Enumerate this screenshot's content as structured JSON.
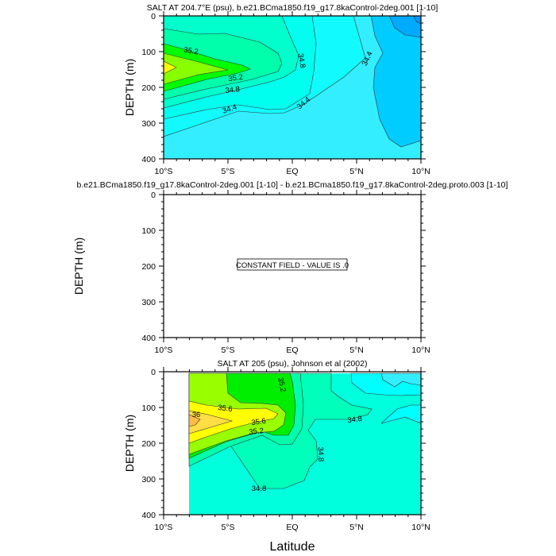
{
  "chart_data": [
    {
      "type": "contour",
      "title": "SALT AT 204.7°E (psu), b.e21.BCma1850.f19_g17.8kaControl-2deg.001 [1-10]",
      "ylabel": "DEPTH (m)",
      "xlabel": "",
      "xlim": [
        -10,
        10
      ],
      "ylim": [
        400,
        0
      ],
      "xticks": [
        -10,
        -5,
        0,
        5,
        10
      ],
      "xtick_labels": [
        "10°S",
        "5°S",
        "EQ",
        "5°N",
        "10°N"
      ],
      "yticks": [
        0,
        100,
        200,
        300,
        400
      ],
      "ytick_labels": [
        "0",
        "100",
        "200",
        "300",
        "400"
      ],
      "contour_labels": [
        "35.2",
        "35.2",
        "34.8",
        "34.4",
        "34.8",
        "34.4",
        "34.4"
      ],
      "colors": [
        "#0099ff",
        "#00aaff",
        "#00ccff",
        "#33eeff",
        "#11fbff",
        "#00ffee",
        "#00ffcc",
        "#00ffaa",
        "#00ff00",
        "#88ff00",
        "#ffff00"
      ]
    },
    {
      "type": "contour",
      "title": "b.e21.BCma1850.f19_g17.8kaControl-2deg.001 [1-10] - b.e21.BCma1850.f19_g17.8kaControl-2deg.proto.003 [1-10]",
      "ylabel": "DEPTH (m)",
      "xlabel": "",
      "xlim": [
        -10,
        10
      ],
      "ylim": [
        400,
        0
      ],
      "xticks": [
        -10,
        -5,
        0,
        5,
        10
      ],
      "xtick_labels": [
        "10°S",
        "5°S",
        "EQ",
        "5°N",
        "10°N"
      ],
      "yticks": [
        0,
        100,
        200,
        300,
        400
      ],
      "ytick_labels": [
        "0",
        "100",
        "200",
        "300",
        "400"
      ],
      "annotation": "CONSTANT FIELD - VALUE IS .0"
    },
    {
      "type": "contour",
      "title": "SALT AT 205 (psu), Johnson et al (2002)",
      "ylabel": "DEPTH (m)",
      "xlabel": "Latitude",
      "xlim": [
        -10,
        10
      ],
      "ylim": [
        400,
        0
      ],
      "xticks": [
        -10,
        -5,
        0,
        5,
        10
      ],
      "xtick_labels": [
        "10°S",
        "5°S",
        "EQ",
        "5°N",
        "10°N"
      ],
      "yticks": [
        0,
        100,
        200,
        300,
        400
      ],
      "ytick_labels": [
        "0",
        "100",
        "200",
        "300",
        "400"
      ],
      "contour_labels": [
        "35.2",
        "35.6",
        "36",
        "35.6",
        "35.2",
        "34.8",
        "34.8",
        "34.8"
      ],
      "colors": [
        "#33eeff",
        "#00ffff",
        "#00ffdd",
        "#00ffbb",
        "#00ffaa",
        "#00ee00",
        "#99ff00",
        "#ffff00",
        "#ffdd44",
        "#ffbb44"
      ]
    }
  ]
}
